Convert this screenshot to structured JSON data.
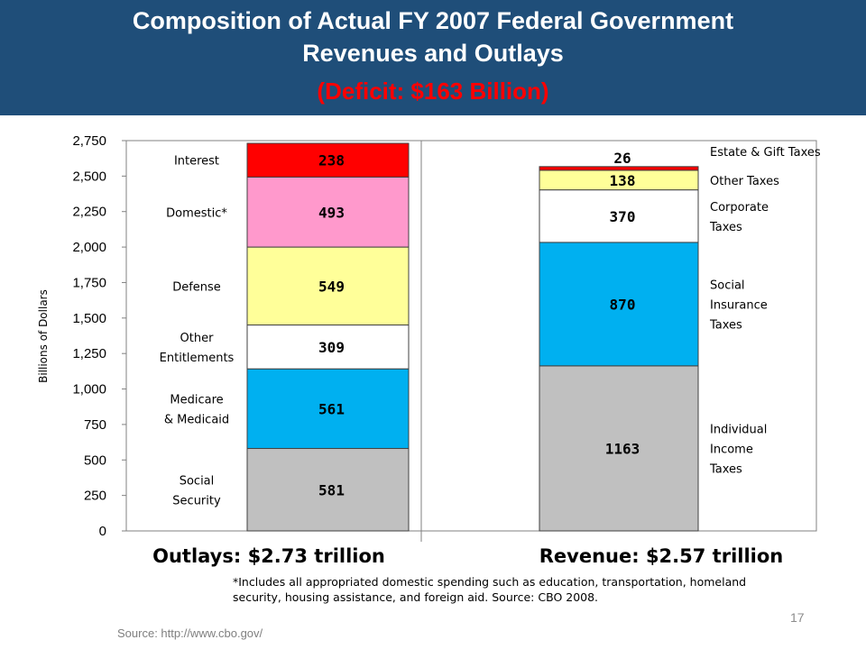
{
  "header": {
    "title_line1": "Composition of Actual FY 2007 Federal Government",
    "title_line2": "Revenues and Outlays",
    "title_line3": "(Deficit: $163 Billion)",
    "bg_color": "#1f4e79",
    "deficit_color": "#ff0000"
  },
  "chart_data": {
    "type": "bar",
    "stacked": true,
    "ylabel": "Billions of Dollars",
    "ylim": [
      0,
      2750
    ],
    "yticks": [
      "0",
      "250",
      "500",
      "750",
      "1,000",
      "1,250",
      "1,500",
      "1,750",
      "2,000",
      "2,250",
      "2,500",
      "2,750"
    ],
    "ytick_values": [
      0,
      250,
      500,
      750,
      1000,
      1250,
      1500,
      1750,
      2000,
      2250,
      2500,
      2750
    ],
    "categories": [
      "Outlays: $2.73 trillion",
      "Revenue: $2.57 trillion"
    ],
    "stacks": [
      {
        "segments": [
          {
            "label_lines": [
              "Social",
              "Security"
            ],
            "value": 581,
            "value_label": "581",
            "color": "#c0c0c0"
          },
          {
            "label_lines": [
              "Medicare",
              "& Medicaid"
            ],
            "value": 561,
            "value_label": "561",
            "color": "#00b0f0"
          },
          {
            "label_lines": [
              "Other",
              "Entitlements"
            ],
            "value": 309,
            "value_label": "309",
            "color": "#ffffff"
          },
          {
            "label_lines": [
              "Defense"
            ],
            "value": 549,
            "value_label": "549",
            "color": "#ffff99"
          },
          {
            "label_lines": [
              "Domestic*"
            ],
            "value": 493,
            "value_label": "493",
            "color": "#ff99cc"
          },
          {
            "label_lines": [
              "Interest"
            ],
            "value": 238,
            "value_label": "238",
            "color": "#ff0000"
          }
        ]
      },
      {
        "segments": [
          {
            "label_lines": [
              "Individual",
              "Income",
              "Taxes"
            ],
            "value": 1163,
            "value_label": "1163",
            "color": "#c0c0c0"
          },
          {
            "label_lines": [
              "Social",
              "Insurance",
              "Taxes"
            ],
            "value": 870,
            "value_label": "870",
            "color": "#00b0f0"
          },
          {
            "label_lines": [
              "Corporate",
              "Taxes"
            ],
            "value": 370,
            "value_label": "370",
            "color": "#ffffff"
          },
          {
            "label_lines": [
              "Other Taxes"
            ],
            "value": 138,
            "value_label": "138",
            "color": "#ffff99"
          },
          {
            "label_lines": [
              "Estate & Gift Taxes"
            ],
            "value": 26,
            "value_label": "26",
            "color": "#ff0000"
          }
        ]
      }
    ]
  },
  "footnote": {
    "line1": "*Includes all appropriated domestic spending such as education, transportation, homeland",
    "line2": "security, housing assistance, and foreign aid.  Source: CBO 2008."
  },
  "source": "Source: http://www.cbo.gov/",
  "page_number": "17"
}
